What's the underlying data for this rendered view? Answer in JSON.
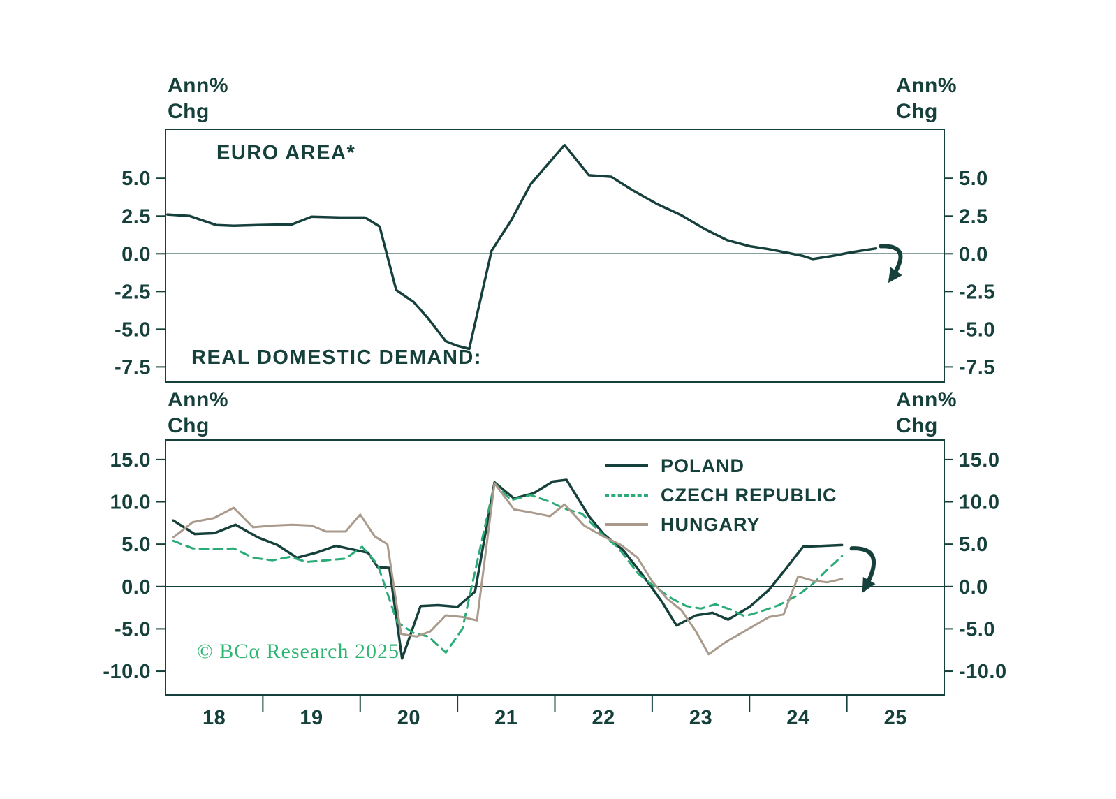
{
  "colors": {
    "dark": "#16403b",
    "czech_green": "#2aab77",
    "hungary_tan": "#a99a8b",
    "copyright_green": "#2db572",
    "background": "#ffffff"
  },
  "labels": {
    "ann_pct": "Ann%",
    "chg": "Chg"
  },
  "chart_data": [
    {
      "type": "line",
      "panel": "top",
      "title": "EURO AREA*",
      "annotation": "REAL DOMESTIC DEMAND:",
      "x_range": [
        17.5,
        25.5
      ],
      "y_range": [
        -8.5,
        8.25
      ],
      "y_tick_labels": [
        "5.0",
        "2.5",
        "0.0",
        "-2.5",
        "-5.0",
        "-7.5"
      ],
      "zero_line": true,
      "grid": false,
      "series": [
        {
          "name": "EURO AREA",
          "color": "#16403b",
          "style": "solid",
          "width": 3.5,
          "points": [
            [
              17.52,
              2.6
            ],
            [
              17.75,
              2.5
            ],
            [
              18.02,
              1.9
            ],
            [
              18.2,
              1.85
            ],
            [
              18.45,
              1.9
            ],
            [
              18.8,
              1.95
            ],
            [
              19.0,
              2.45
            ],
            [
              19.3,
              2.4
            ],
            [
              19.55,
              2.4
            ],
            [
              19.7,
              1.8
            ],
            [
              19.87,
              -2.4
            ],
            [
              20.05,
              -3.2
            ],
            [
              20.2,
              -4.3
            ],
            [
              20.38,
              -5.8
            ],
            [
              20.5,
              -6.1
            ],
            [
              20.62,
              -6.3
            ],
            [
              20.85,
              0.2
            ],
            [
              21.05,
              2.2
            ],
            [
              21.25,
              4.6
            ],
            [
              21.45,
              6.1
            ],
            [
              21.6,
              7.2
            ],
            [
              21.85,
              5.2
            ],
            [
              22.08,
              5.1
            ],
            [
              22.3,
              4.2
            ],
            [
              22.55,
              3.3
            ],
            [
              22.8,
              2.55
            ],
            [
              23.05,
              1.6
            ],
            [
              23.27,
              0.9
            ],
            [
              23.5,
              0.5
            ],
            [
              23.7,
              0.3
            ],
            [
              23.9,
              0.05
            ],
            [
              24.05,
              -0.15
            ],
            [
              24.15,
              -0.35
            ],
            [
              24.35,
              -0.15
            ],
            [
              24.55,
              0.1
            ],
            [
              24.8,
              0.35
            ]
          ]
        }
      ],
      "arrow": {
        "from": [
          24.85,
          0.5
        ],
        "to": [
          24.95,
          -1.7
        ]
      }
    },
    {
      "type": "line",
      "panel": "bottom",
      "x_range": [
        17.5,
        25.5
      ],
      "y_range": [
        -12.8,
        17.3
      ],
      "y_tick_labels": [
        "15.0",
        "10.0",
        "5.0",
        "0.0",
        "-5.0",
        "-10.0"
      ],
      "x_tick_labels": [
        "18",
        "19",
        "20",
        "21",
        "22",
        "23",
        "24",
        "25"
      ],
      "x_tick_label_positions": [
        18,
        19,
        20,
        21,
        22,
        23,
        24,
        25
      ],
      "x_tick_marks": [
        18.5,
        19.5,
        20.5,
        21.5,
        22.5,
        23.5,
        24.5
      ],
      "zero_line": true,
      "grid": false,
      "legend_position": "top-right-inside",
      "copyright": "© BCα Research 2025",
      "series": [
        {
          "name": "POLAND",
          "color": "#16403b",
          "style": "solid",
          "width": 3.5,
          "points": [
            [
              17.58,
              7.8
            ],
            [
              17.8,
              6.2
            ],
            [
              18.0,
              6.3
            ],
            [
              18.22,
              7.3
            ],
            [
              18.45,
              5.8
            ],
            [
              18.65,
              4.9
            ],
            [
              18.85,
              3.4
            ],
            [
              19.05,
              4.0
            ],
            [
              19.25,
              4.8
            ],
            [
              19.45,
              4.3
            ],
            [
              19.58,
              4.0
            ],
            [
              19.68,
              2.3
            ],
            [
              19.8,
              2.2
            ],
            [
              19.93,
              -8.5
            ],
            [
              20.12,
              -2.3
            ],
            [
              20.3,
              -2.2
            ],
            [
              20.5,
              -2.4
            ],
            [
              20.68,
              -0.6
            ],
            [
              20.88,
              12.3
            ],
            [
              21.08,
              10.4
            ],
            [
              21.28,
              11.0
            ],
            [
              21.48,
              12.4
            ],
            [
              21.62,
              12.6
            ],
            [
              21.85,
              8.3
            ],
            [
              22.0,
              6.2
            ],
            [
              22.2,
              4.3
            ],
            [
              22.4,
              1.4
            ],
            [
              22.6,
              -1.8
            ],
            [
              22.75,
              -4.6
            ],
            [
              22.95,
              -3.4
            ],
            [
              23.12,
              -3.1
            ],
            [
              23.28,
              -3.9
            ],
            [
              23.5,
              -2.4
            ],
            [
              23.7,
              -0.4
            ],
            [
              23.88,
              2.2
            ],
            [
              24.05,
              4.7
            ],
            [
              24.25,
              4.8
            ],
            [
              24.45,
              4.9
            ]
          ]
        },
        {
          "name": "CZECH REPUBLIC",
          "color": "#2aab77",
          "style": "dashed",
          "width": 3,
          "points": [
            [
              17.58,
              5.4
            ],
            [
              17.78,
              4.5
            ],
            [
              18.0,
              4.4
            ],
            [
              18.2,
              4.5
            ],
            [
              18.4,
              3.4
            ],
            [
              18.6,
              3.1
            ],
            [
              18.78,
              3.5
            ],
            [
              18.95,
              2.9
            ],
            [
              19.15,
              3.1
            ],
            [
              19.35,
              3.3
            ],
            [
              19.52,
              4.7
            ],
            [
              19.68,
              2.6
            ],
            [
              19.88,
              -4.2
            ],
            [
              20.05,
              -5.5
            ],
            [
              20.2,
              -5.9
            ],
            [
              20.38,
              -7.8
            ],
            [
              20.55,
              -5.0
            ],
            [
              20.88,
              12.2
            ],
            [
              21.05,
              10.2
            ],
            [
              21.25,
              10.8
            ],
            [
              21.45,
              10.0
            ],
            [
              21.6,
              9.2
            ],
            [
              21.78,
              8.6
            ],
            [
              22.0,
              6.0
            ],
            [
              22.15,
              4.6
            ],
            [
              22.35,
              1.6
            ],
            [
              22.5,
              0.2
            ],
            [
              22.7,
              -1.4
            ],
            [
              22.85,
              -2.3
            ],
            [
              23.0,
              -2.6
            ],
            [
              23.15,
              -2.1
            ],
            [
              23.3,
              -2.7
            ],
            [
              23.45,
              -3.5
            ],
            [
              23.6,
              -3.0
            ],
            [
              23.8,
              -2.2
            ],
            [
              24.0,
              -1.0
            ],
            [
              24.15,
              0.3
            ],
            [
              24.3,
              2.0
            ],
            [
              24.45,
              3.6
            ]
          ]
        },
        {
          "name": "HUNGARY",
          "color": "#a99a8b",
          "style": "solid",
          "width": 3,
          "points": [
            [
              17.58,
              5.8
            ],
            [
              17.78,
              7.6
            ],
            [
              18.0,
              8.1
            ],
            [
              18.2,
              9.3
            ],
            [
              18.4,
              7.0
            ],
            [
              18.6,
              7.2
            ],
            [
              18.8,
              7.3
            ],
            [
              19.0,
              7.2
            ],
            [
              19.15,
              6.5
            ],
            [
              19.35,
              6.5
            ],
            [
              19.5,
              8.5
            ],
            [
              19.65,
              5.9
            ],
            [
              19.78,
              5.0
            ],
            [
              19.92,
              -5.6
            ],
            [
              20.08,
              -5.9
            ],
            [
              20.22,
              -5.3
            ],
            [
              20.38,
              -3.4
            ],
            [
              20.55,
              -3.6
            ],
            [
              20.7,
              -4.0
            ],
            [
              20.88,
              12.2
            ],
            [
              21.08,
              9.1
            ],
            [
              21.28,
              8.7
            ],
            [
              21.45,
              8.3
            ],
            [
              21.6,
              9.7
            ],
            [
              21.8,
              7.2
            ],
            [
              22.0,
              5.9
            ],
            [
              22.18,
              4.9
            ],
            [
              22.35,
              3.4
            ],
            [
              22.5,
              0.6
            ],
            [
              22.65,
              -1.4
            ],
            [
              22.8,
              -2.8
            ],
            [
              22.95,
              -5.3
            ],
            [
              23.08,
              -8.0
            ],
            [
              23.25,
              -6.6
            ],
            [
              23.4,
              -5.6
            ],
            [
              23.55,
              -4.6
            ],
            [
              23.7,
              -3.6
            ],
            [
              23.85,
              -3.3
            ],
            [
              24.0,
              1.2
            ],
            [
              24.15,
              0.7
            ],
            [
              24.3,
              0.5
            ],
            [
              24.45,
              0.9
            ]
          ]
        }
      ],
      "arrow": {
        "from": [
          24.55,
          4.5
        ],
        "to": [
          24.68,
          -0.3
        ]
      }
    }
  ]
}
